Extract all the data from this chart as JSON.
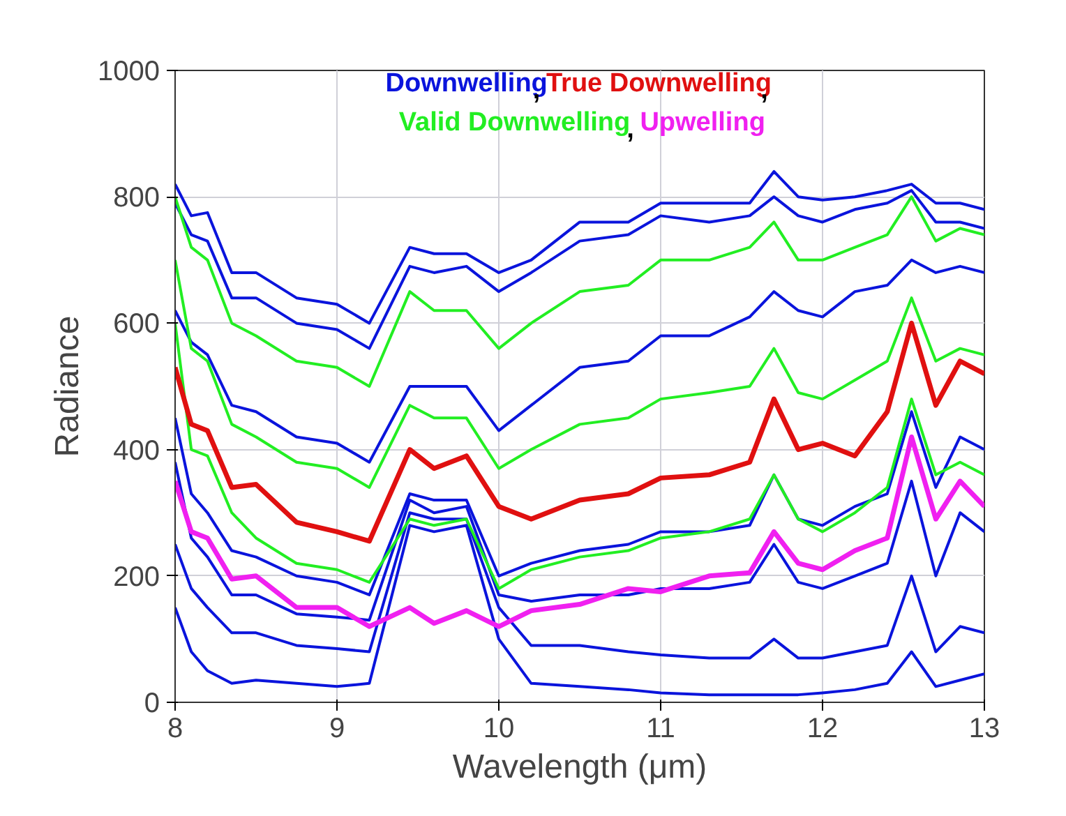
{
  "chart_data": {
    "type": "line",
    "xlabel": "Wavelength (μm)",
    "ylabel": "Radiance",
    "xlim": [
      8,
      13
    ],
    "ylim": [
      0,
      1000
    ],
    "xticks": [
      8,
      9,
      10,
      11,
      12,
      13
    ],
    "yticks": [
      0,
      200,
      400,
      600,
      800,
      1000
    ],
    "grid": true,
    "annotations": [
      ",",
      ",",
      ","
    ],
    "line_style": "solid",
    "marker": "none",
    "x": [
      8.0,
      8.1,
      8.2,
      8.35,
      8.5,
      8.75,
      9.0,
      9.2,
      9.45,
      9.6,
      9.8,
      10.0,
      10.2,
      10.5,
      10.8,
      11.0,
      11.3,
      11.55,
      11.7,
      11.85,
      12.0,
      12.2,
      12.4,
      12.55,
      12.7,
      12.85,
      13.0
    ],
    "series": [
      {
        "name": "Downwelling",
        "color": "#0a14dc",
        "values": [
          820,
          770,
          775,
          680,
          680,
          640,
          630,
          600,
          720,
          710,
          710,
          680,
          700,
          760,
          760,
          790,
          790,
          790,
          840,
          800,
          795,
          800,
          810,
          820,
          790,
          790,
          780
        ]
      },
      {
        "color": "#0a14dc",
        "values": [
          790,
          740,
          730,
          640,
          640,
          600,
          590,
          560,
          690,
          680,
          690,
          650,
          680,
          730,
          740,
          770,
          760,
          770,
          800,
          770,
          760,
          780,
          790,
          810,
          760,
          760,
          750
        ]
      },
      {
        "color": "#0a14dc",
        "values": [
          620,
          570,
          550,
          470,
          460,
          420,
          410,
          380,
          500,
          500,
          500,
          430,
          470,
          530,
          540,
          580,
          580,
          610,
          650,
          620,
          610,
          650,
          660,
          700,
          680,
          690,
          680
        ]
      },
      {
        "color": "#0a14dc",
        "values": [
          150,
          80,
          50,
          30,
          35,
          30,
          25,
          30,
          280,
          270,
          280,
          100,
          30,
          25,
          20,
          15,
          12,
          12,
          12,
          12,
          15,
          20,
          30,
          80,
          25,
          35,
          45
        ]
      },
      {
        "color": "#0a14dc",
        "values": [
          250,
          180,
          150,
          110,
          110,
          90,
          85,
          80,
          300,
          290,
          290,
          150,
          90,
          90,
          80,
          75,
          70,
          70,
          100,
          70,
          70,
          80,
          90,
          200,
          80,
          120,
          110
        ]
      },
      {
        "color": "#0a14dc",
        "values": [
          380,
          260,
          230,
          170,
          170,
          140,
          135,
          130,
          320,
          300,
          310,
          170,
          160,
          170,
          170,
          180,
          180,
          190,
          250,
          190,
          180,
          200,
          220,
          350,
          200,
          300,
          270
        ]
      },
      {
        "color": "#0a14dc",
        "values": [
          450,
          330,
          300,
          240,
          230,
          200,
          190,
          170,
          330,
          320,
          320,
          200,
          220,
          240,
          250,
          270,
          270,
          280,
          360,
          290,
          280,
          310,
          330,
          460,
          340,
          420,
          400
        ]
      },
      {
        "name": "Valid Downwelling",
        "color": "#22ee22",
        "values": [
          800,
          720,
          700,
          600,
          580,
          540,
          530,
          500,
          650,
          620,
          620,
          560,
          600,
          650,
          660,
          700,
          700,
          720,
          760,
          700,
          700,
          720,
          740,
          800,
          730,
          750,
          740
        ]
      },
      {
        "color": "#22ee22",
        "values": [
          700,
          560,
          540,
          440,
          420,
          380,
          370,
          340,
          470,
          450,
          450,
          370,
          400,
          440,
          450,
          480,
          490,
          500,
          560,
          490,
          480,
          510,
          540,
          640,
          540,
          560,
          550
        ]
      },
      {
        "color": "#22ee22",
        "values": [
          600,
          400,
          390,
          300,
          260,
          220,
          210,
          190,
          290,
          280,
          290,
          180,
          210,
          230,
          240,
          260,
          270,
          290,
          360,
          290,
          270,
          300,
          340,
          480,
          360,
          380,
          360
        ]
      },
      {
        "name": "True Downwelling",
        "color": "#e01010",
        "values": [
          530,
          440,
          430,
          340,
          345,
          285,
          270,
          255,
          400,
          370,
          390,
          310,
          290,
          320,
          330,
          355,
          360,
          380,
          480,
          400,
          410,
          390,
          460,
          600,
          470,
          540,
          520
        ]
      },
      {
        "name": "Upwelling",
        "color": "#f020f0",
        "values": [
          350,
          270,
          260,
          195,
          200,
          150,
          150,
          120,
          150,
          125,
          145,
          120,
          145,
          155,
          180,
          175,
          200,
          205,
          270,
          220,
          210,
          240,
          260,
          420,
          290,
          350,
          310
        ]
      }
    ]
  }
}
